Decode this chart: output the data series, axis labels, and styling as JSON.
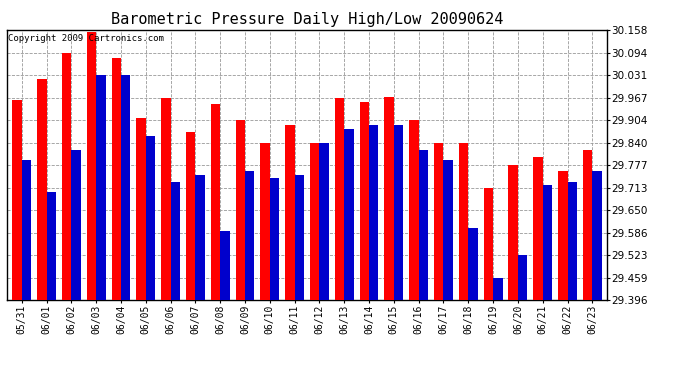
{
  "title": "Barometric Pressure Daily High/Low 20090624",
  "copyright": "Copyright 2009 Cartronics.com",
  "dates": [
    "05/31",
    "06/01",
    "06/02",
    "06/03",
    "06/04",
    "06/05",
    "06/06",
    "06/07",
    "06/08",
    "06/09",
    "06/10",
    "06/11",
    "06/12",
    "06/13",
    "06/14",
    "06/15",
    "06/16",
    "06/17",
    "06/18",
    "06/19",
    "06/20",
    "06/21",
    "06/22",
    "06/23"
  ],
  "high": [
    29.96,
    30.02,
    30.094,
    30.152,
    30.08,
    29.91,
    29.965,
    29.87,
    29.95,
    29.904,
    29.84,
    29.89,
    29.84,
    29.965,
    29.955,
    29.97,
    29.904,
    29.84,
    29.84,
    29.713,
    29.777,
    29.8,
    29.76,
    29.82
  ],
  "low": [
    29.79,
    29.7,
    29.82,
    30.031,
    30.031,
    29.86,
    29.73,
    29.75,
    29.59,
    29.76,
    29.74,
    29.75,
    29.84,
    29.88,
    29.89,
    29.89,
    29.82,
    29.79,
    29.6,
    29.459,
    29.523,
    29.72,
    29.73,
    29.76
  ],
  "ymin": 29.396,
  "ymax": 30.158,
  "yticks": [
    29.396,
    29.459,
    29.523,
    29.586,
    29.65,
    29.713,
    29.777,
    29.84,
    29.904,
    29.967,
    30.031,
    30.094,
    30.158
  ],
  "high_color": "#ff0000",
  "low_color": "#0000cc",
  "bg_color": "#ffffff",
  "plot_bg_color": "#ffffff",
  "grid_color": "#999999",
  "title_fontsize": 11,
  "bar_width": 0.38,
  "figsize": [
    6.9,
    3.75
  ],
  "dpi": 100
}
